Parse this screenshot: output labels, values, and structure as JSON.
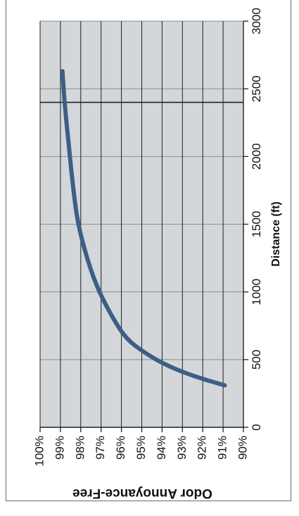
{
  "chart_data": {
    "type": "line",
    "orientation": "rotated-90",
    "xlabel": "Distance (ft)",
    "ylabel": "Odor Annoyance-Free",
    "xlim": [
      0,
      3000
    ],
    "ylim": [
      0.9,
      1.0
    ],
    "x_ticks": [
      "0",
      "500",
      "1000",
      "1500",
      "2000",
      "2500",
      "3000"
    ],
    "y_ticks": [
      "100%",
      "99%",
      "98%",
      "97%",
      "96%",
      "95%",
      "94%",
      "93%",
      "92%",
      "91%",
      "90%"
    ],
    "grid": true,
    "reference_line_x": 2400,
    "series": [
      {
        "color": "#3d5f86",
        "x": [
          310,
          350,
          400,
          470,
          550,
          650,
          800,
          1000,
          1200,
          1500,
          1800,
          2100,
          2400,
          2630
        ],
        "y": [
          0.9092,
          0.9185,
          0.9285,
          0.9395,
          0.9485,
          0.9575,
          0.964,
          0.971,
          0.976,
          0.9815,
          0.984,
          0.986,
          0.988,
          0.989
        ]
      }
    ]
  }
}
